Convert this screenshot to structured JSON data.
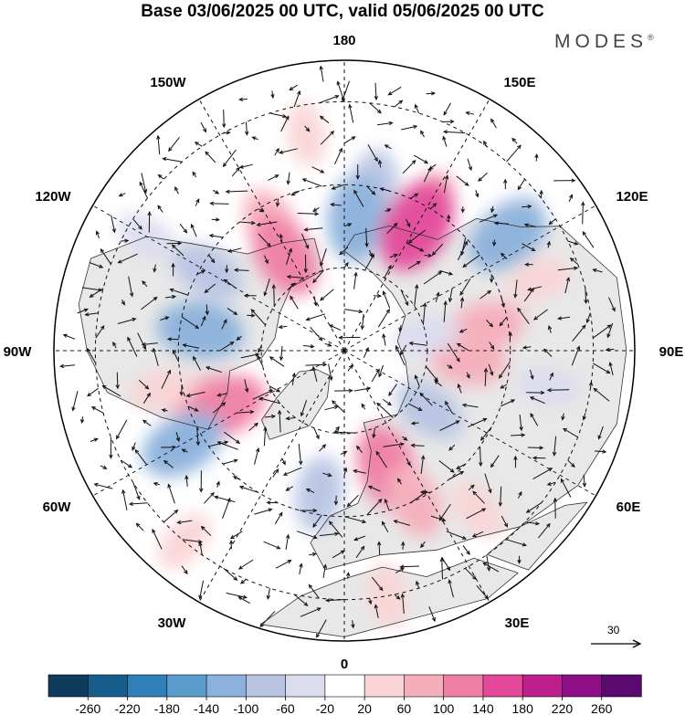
{
  "title": "Base 03/06/2025 00 UTC, valid 05/06/2025 00 UTC",
  "brand": {
    "name": "MODES",
    "mark": "®"
  },
  "longitude_labels": {
    "lon_180": "180",
    "lon_150E": "150E",
    "lon_120E": "120E",
    "lon_90E": "90E",
    "lon_60E": "60E",
    "lon_30E": "30E",
    "lon_0": "0",
    "lon_30W": "30W",
    "lon_60W": "60W",
    "lon_90W": "90W",
    "lon_120W": "120W",
    "lon_150W": "150W"
  },
  "vector_scale": {
    "value": "30"
  },
  "colorbar": {
    "ticks": [
      "-260",
      "-220",
      "-180",
      "-140",
      "-100",
      "-60",
      "-20",
      "20",
      "60",
      "100",
      "140",
      "180",
      "220",
      "260"
    ],
    "colors": [
      "#0f3b5c",
      "#175e8f",
      "#2f7fb9",
      "#5a9dcc",
      "#8bb1dc",
      "#b9c4e3",
      "#dcdcef",
      "#ffffff",
      "#fad4d6",
      "#f6aebb",
      "#f07fa6",
      "#e3489a",
      "#bf1f8e",
      "#8e0e86",
      "#5a0a6e"
    ]
  },
  "colors": {
    "land_mask": "#e8e8e8",
    "ocean": "#ffffff",
    "coast": "#333333",
    "grid": "#111111"
  },
  "anomaly_blobs": [
    {
      "sign": "neg",
      "level": 2,
      "lon": 170,
      "lat": 50
    },
    {
      "sign": "neg",
      "level": 3,
      "lon": 175,
      "lat": 58
    },
    {
      "sign": "pos",
      "level": 2,
      "lon": 150,
      "lat": 50
    },
    {
      "sign": "pos",
      "level": 4,
      "lon": 150,
      "lat": 55
    },
    {
      "sign": "neg",
      "level": 2,
      "lon": 127,
      "lat": 40
    },
    {
      "sign": "neg",
      "level": 3,
      "lon": 125,
      "lat": 42
    },
    {
      "sign": "pos",
      "level": 2,
      "lon": -150,
      "lat": 55
    },
    {
      "sign": "pos",
      "level": 3,
      "lon": -148,
      "lat": 63
    },
    {
      "sign": "pos",
      "level": 1,
      "lon": -170,
      "lat": 37
    },
    {
      "sign": "neg",
      "level": 2,
      "lon": -120,
      "lat": 52
    },
    {
      "sign": "neg",
      "level": 2,
      "lon": -100,
      "lat": 55
    },
    {
      "sign": "neg",
      "level": 3,
      "lon": -98,
      "lat": 55
    },
    {
      "sign": "pos",
      "level": 2,
      "lon": -70,
      "lat": 55
    },
    {
      "sign": "pos",
      "level": 3,
      "lon": -65,
      "lat": 58
    },
    {
      "sign": "pos",
      "level": 1,
      "lon": -78,
      "lat": 45
    },
    {
      "sign": "neg",
      "level": 3,
      "lon": -60,
      "lat": 45
    },
    {
      "sign": "neg",
      "level": 2,
      "lon": -10,
      "lat": 55
    },
    {
      "sign": "pos",
      "level": 3,
      "lon": 20,
      "lat": 60
    },
    {
      "sign": "pos",
      "level": 2,
      "lon": 25,
      "lat": 50
    },
    {
      "sign": "neg",
      "level": 2,
      "lon": 55,
      "lat": 65
    },
    {
      "sign": "pos",
      "level": 2,
      "lon": 85,
      "lat": 60
    },
    {
      "sign": "pos",
      "level": 2,
      "lon": 100,
      "lat": 55
    },
    {
      "sign": "neg",
      "level": 1,
      "lon": 100,
      "lat": 70
    },
    {
      "sign": "pos",
      "level": 1,
      "lon": 110,
      "lat": 40
    },
    {
      "sign": "neg",
      "level": 1,
      "lon": 80,
      "lat": 40
    },
    {
      "sign": "pos",
      "level": 1,
      "lon": 40,
      "lat": 40
    },
    {
      "sign": "neg",
      "level": 1,
      "lon": -120,
      "lat": 35
    },
    {
      "sign": "pos",
      "level": 1,
      "lon": -40,
      "lat": 30
    },
    {
      "sign": "pos",
      "level": 1,
      "lon": 10,
      "lat": 30
    }
  ]
}
